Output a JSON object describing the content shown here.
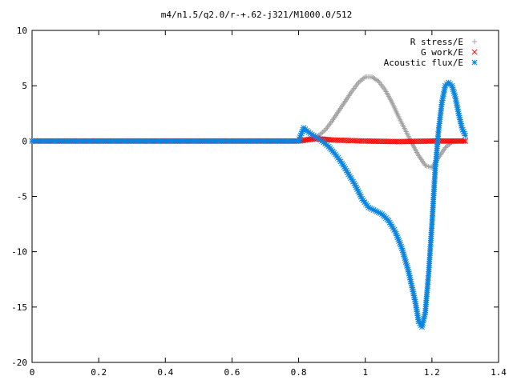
{
  "chart_data": {
    "type": "scatter",
    "title": "m4/n1.5/q2.0/r-+.62-j321/M1000.0/512",
    "xlabel": "",
    "ylabel": "",
    "xlim": [
      0,
      1.4
    ],
    "ylim": [
      -20,
      10
    ],
    "xticks": [
      "0",
      "0.2",
      "0.4",
      "0.6",
      "0.8",
      "1",
      "1.2",
      "1.4"
    ],
    "yticks": [
      "10",
      "5",
      "0",
      "-5",
      "-10",
      "-15",
      "-20"
    ],
    "grid": false,
    "legend_position": "top-right",
    "series": [
      {
        "name": "R stress/E",
        "marker": "plus",
        "color": "#a0a0a0",
        "points": [
          [
            0.0,
            0.0
          ],
          [
            0.8,
            0.0
          ],
          [
            0.84,
            0.1
          ],
          [
            0.86,
            0.5
          ],
          [
            0.88,
            1.0
          ],
          [
            0.9,
            1.8
          ],
          [
            0.92,
            2.7
          ],
          [
            0.94,
            3.6
          ],
          [
            0.96,
            4.5
          ],
          [
            0.98,
            5.3
          ],
          [
            1.0,
            5.8
          ],
          [
            1.02,
            5.8
          ],
          [
            1.04,
            5.4
          ],
          [
            1.06,
            4.6
          ],
          [
            1.08,
            3.5
          ],
          [
            1.1,
            2.2
          ],
          [
            1.12,
            1.0
          ],
          [
            1.14,
            -0.2
          ],
          [
            1.16,
            -1.3
          ],
          [
            1.18,
            -2.2
          ],
          [
            1.2,
            -2.4
          ],
          [
            1.22,
            -1.5
          ],
          [
            1.24,
            -0.6
          ],
          [
            1.26,
            -0.1
          ],
          [
            1.28,
            0.0
          ],
          [
            1.3,
            0.0
          ]
        ]
      },
      {
        "name": "G work/E",
        "marker": "cross",
        "color": "#ff0000",
        "points": [
          [
            0.0,
            0.0
          ],
          [
            0.8,
            0.0
          ],
          [
            0.82,
            0.1
          ],
          [
            0.84,
            0.2
          ],
          [
            0.86,
            0.2
          ],
          [
            0.9,
            0.1
          ],
          [
            0.95,
            0.05
          ],
          [
            1.0,
            0.0
          ],
          [
            1.1,
            -0.05
          ],
          [
            1.2,
            0.0
          ],
          [
            1.3,
            0.0
          ]
        ]
      },
      {
        "name": "Acoustic flux/E",
        "marker": "star",
        "color": "#0b84e0",
        "points": [
          [
            0.0,
            0.0
          ],
          [
            0.8,
            0.0
          ],
          [
            0.815,
            1.2
          ],
          [
            0.83,
            0.8
          ],
          [
            0.85,
            0.4
          ],
          [
            0.87,
            0.0
          ],
          [
            0.89,
            -0.5
          ],
          [
            0.91,
            -1.2
          ],
          [
            0.93,
            -2.0
          ],
          [
            0.95,
            -3.0
          ],
          [
            0.97,
            -4.0
          ],
          [
            0.99,
            -5.2
          ],
          [
            1.01,
            -6.0
          ],
          [
            1.03,
            -6.3
          ],
          [
            1.05,
            -6.6
          ],
          [
            1.07,
            -7.2
          ],
          [
            1.09,
            -8.2
          ],
          [
            1.11,
            -9.7
          ],
          [
            1.13,
            -11.8
          ],
          [
            1.15,
            -14.5
          ],
          [
            1.16,
            -16.3
          ],
          [
            1.17,
            -16.8
          ],
          [
            1.18,
            -15.5
          ],
          [
            1.19,
            -12.0
          ],
          [
            1.2,
            -7.5
          ],
          [
            1.21,
            -2.5
          ],
          [
            1.22,
            1.0
          ],
          [
            1.23,
            3.5
          ],
          [
            1.24,
            5.0
          ],
          [
            1.25,
            5.3
          ],
          [
            1.26,
            5.0
          ],
          [
            1.27,
            4.0
          ],
          [
            1.28,
            2.5
          ],
          [
            1.29,
            1.2
          ],
          [
            1.3,
            0.5
          ]
        ]
      }
    ]
  }
}
